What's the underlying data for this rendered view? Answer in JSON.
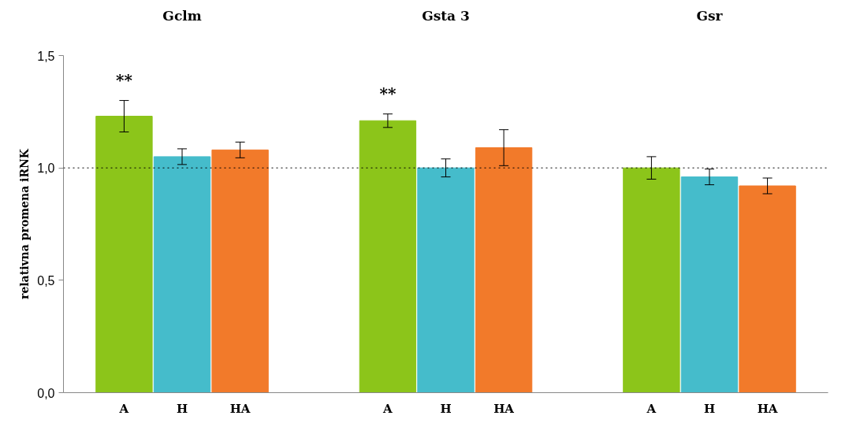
{
  "chart_data": {
    "type": "bar",
    "ylabel": "relativna promena iRNK",
    "categories": [
      "Gclm",
      "Gsta 3",
      "Gsr"
    ],
    "series": [
      {
        "name": "A",
        "color": "#8cc51a",
        "values": [
          1.23,
          1.21,
          1.0
        ],
        "errors": [
          0.07,
          0.03,
          0.05
        ]
      },
      {
        "name": "H",
        "color": "#45bccb",
        "values": [
          1.05,
          1.0,
          0.96
        ],
        "errors": [
          0.035,
          0.04,
          0.035
        ]
      },
      {
        "name": "HA",
        "color": "#f27a2a",
        "values": [
          1.08,
          1.09,
          0.92
        ],
        "errors": [
          0.035,
          0.08,
          0.035
        ]
      }
    ],
    "ylim": [
      0,
      1.5
    ],
    "yticks": [
      {
        "value": 0,
        "label": "0,0"
      },
      {
        "value": 0.5,
        "label": "0,5"
      },
      {
        "value": 1,
        "label": "1,0"
      },
      {
        "value": 1.5,
        "label": "1,5"
      }
    ],
    "ref_lines": [
      {
        "axis": "y",
        "value": 1,
        "line_style": "dotted",
        "color": "#000000"
      }
    ],
    "annotations": [
      "**",
      "**"
    ],
    "grid": false
  }
}
